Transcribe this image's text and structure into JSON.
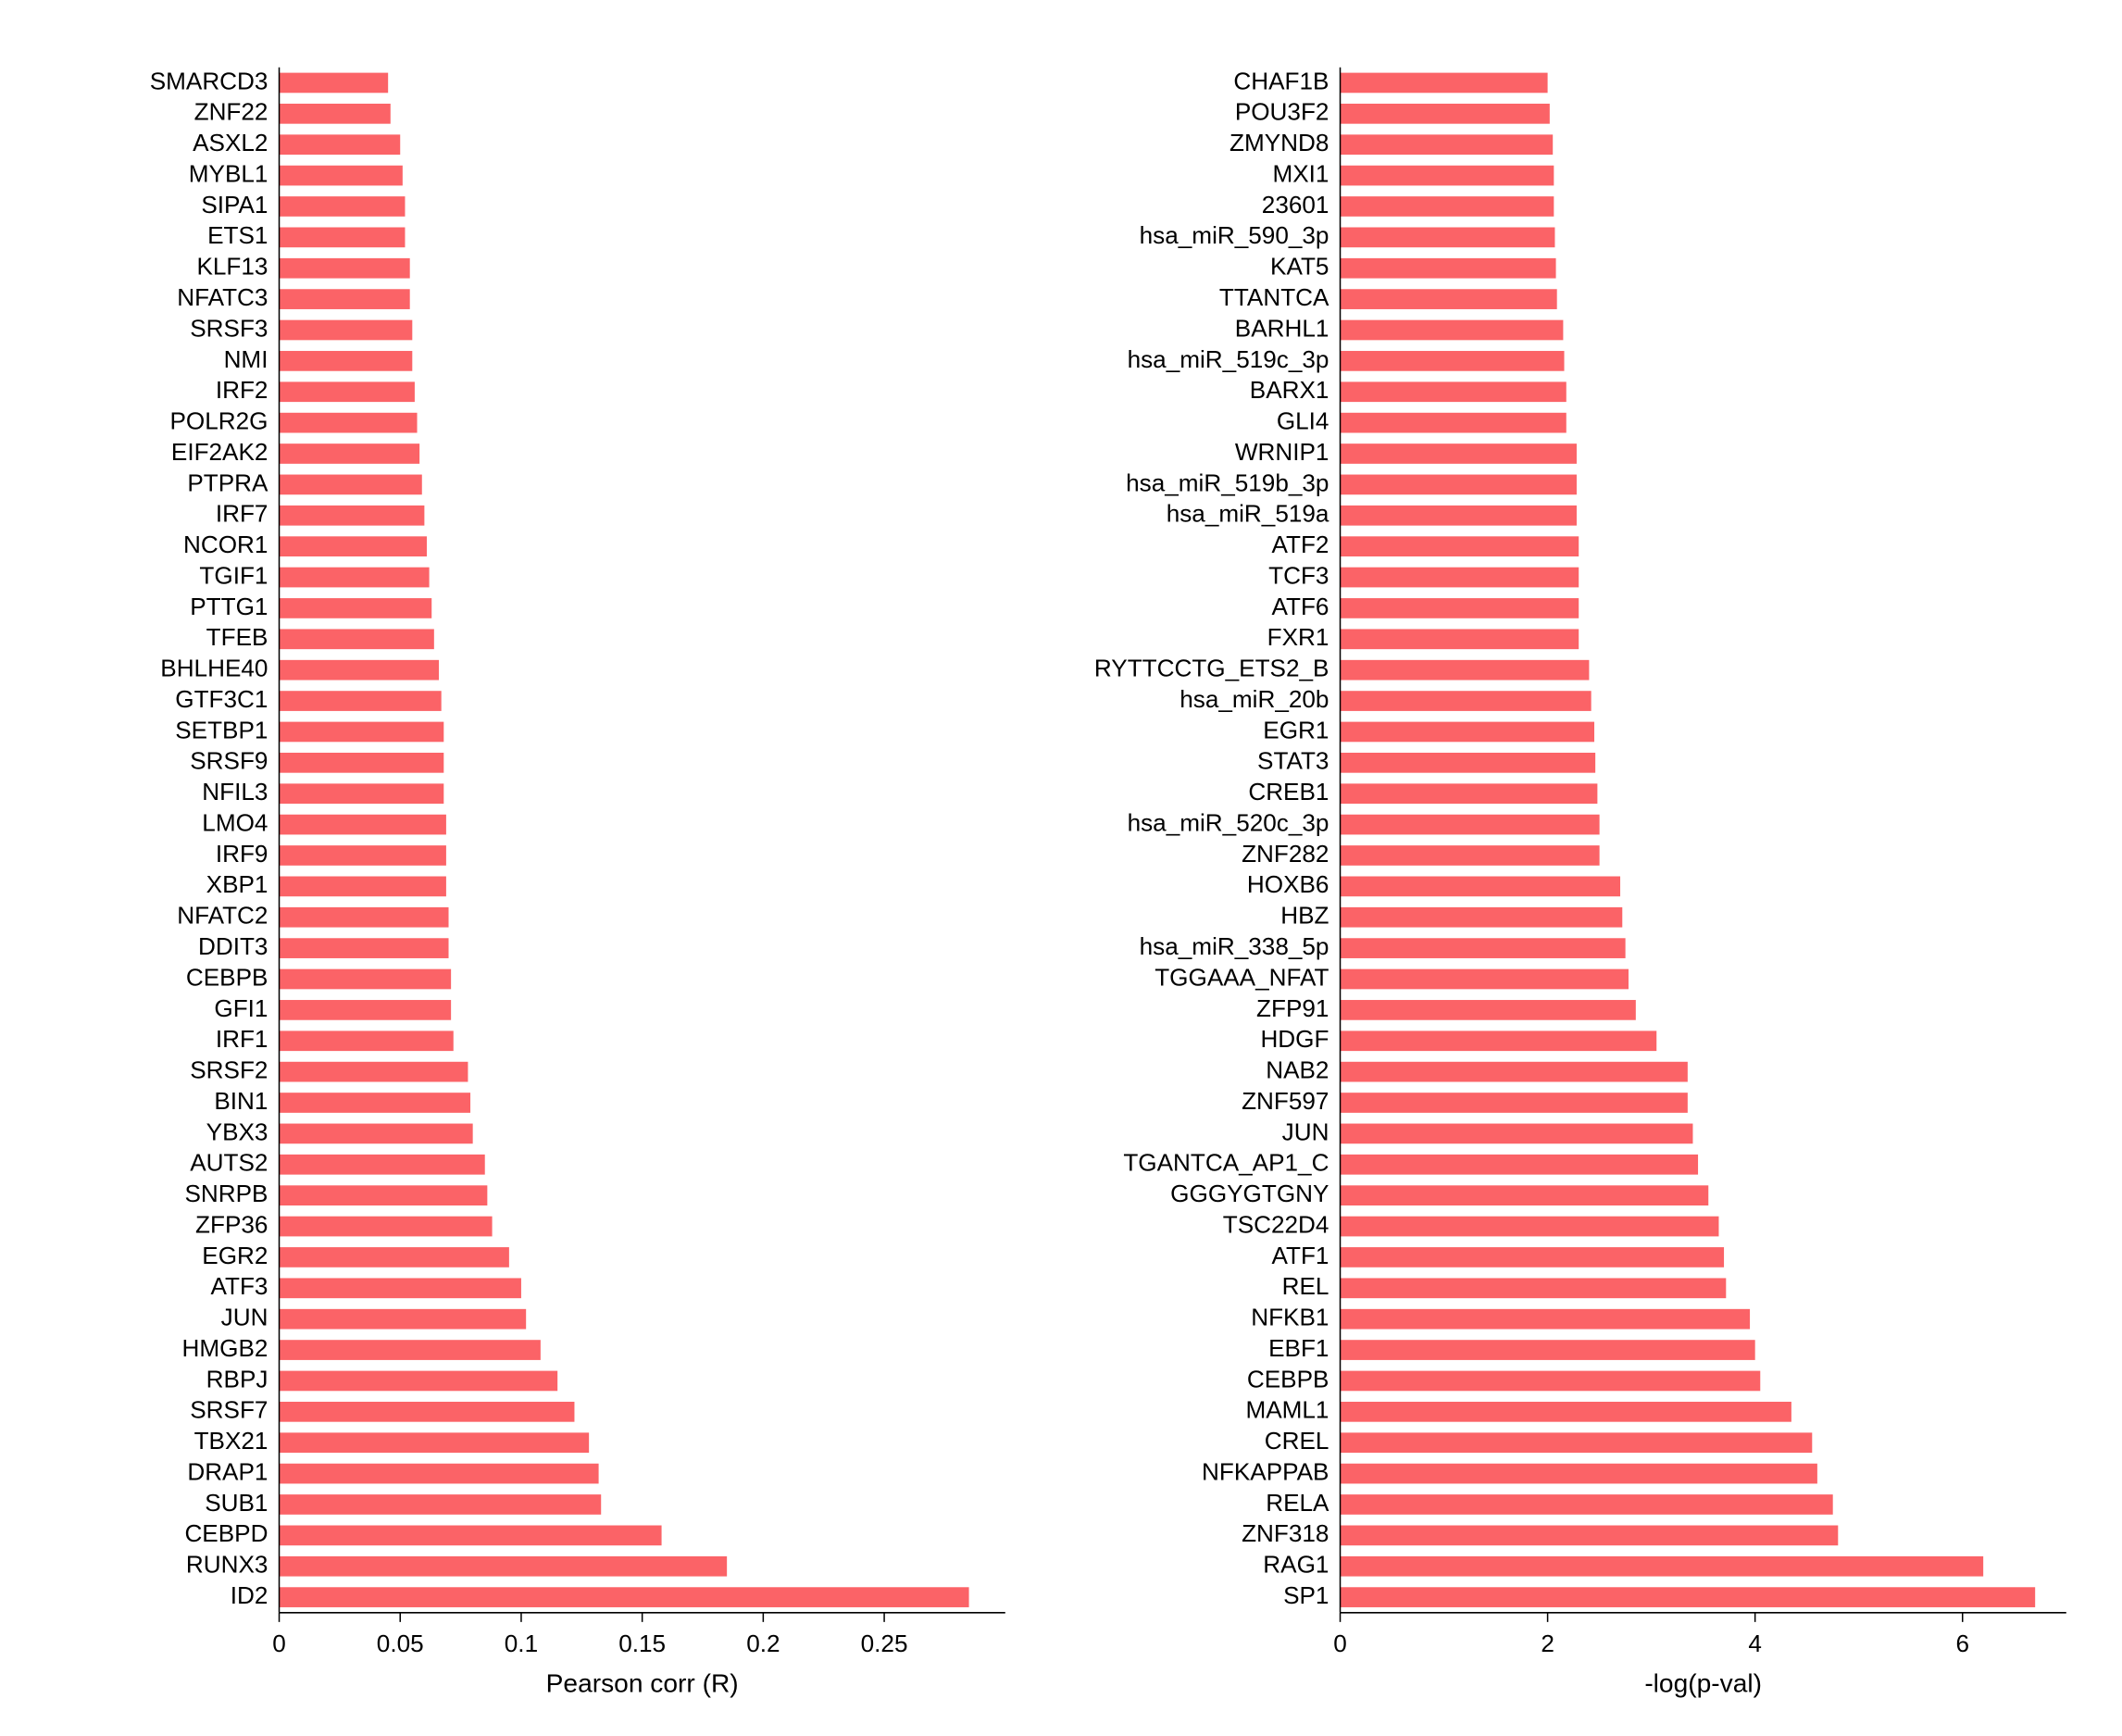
{
  "bar_color": "#fb6367",
  "background_color": "#ffffff",
  "axis_color": "#000000",
  "label_fontsize": 26,
  "axis_title_fontsize": 28,
  "bar_height_ratio": 0.65,
  "left": {
    "type": "bar",
    "xlabel": "Pearson corr (R)",
    "xlim": [
      0,
      0.3
    ],
    "xticks": [
      0,
      0.05,
      0.1,
      0.15,
      0.2,
      0.25
    ],
    "xtick_labels": [
      "0",
      "0.05",
      "0.1",
      "0.15",
      "0.2",
      "0.25"
    ],
    "items": [
      {
        "label": "SMARCD3",
        "value": 0.045
      },
      {
        "label": "ZNF22",
        "value": 0.046
      },
      {
        "label": "ASXL2",
        "value": 0.05
      },
      {
        "label": "MYBL1",
        "value": 0.051
      },
      {
        "label": "SIPA1",
        "value": 0.052
      },
      {
        "label": "ETS1",
        "value": 0.052
      },
      {
        "label": "KLF13",
        "value": 0.054
      },
      {
        "label": "NFATC3",
        "value": 0.054
      },
      {
        "label": "SRSF3",
        "value": 0.055
      },
      {
        "label": "NMI",
        "value": 0.055
      },
      {
        "label": "IRF2",
        "value": 0.056
      },
      {
        "label": "POLR2G",
        "value": 0.057
      },
      {
        "label": "EIF2AK2",
        "value": 0.058
      },
      {
        "label": "PTPRA",
        "value": 0.059
      },
      {
        "label": "IRF7",
        "value": 0.06
      },
      {
        "label": "NCOR1",
        "value": 0.061
      },
      {
        "label": "TGIF1",
        "value": 0.062
      },
      {
        "label": "PTTG1",
        "value": 0.063
      },
      {
        "label": "TFEB",
        "value": 0.064
      },
      {
        "label": "BHLHE40",
        "value": 0.066
      },
      {
        "label": "GTF3C1",
        "value": 0.067
      },
      {
        "label": "SETBP1",
        "value": 0.068
      },
      {
        "label": "SRSF9",
        "value": 0.068
      },
      {
        "label": "NFIL3",
        "value": 0.068
      },
      {
        "label": "LMO4",
        "value": 0.069
      },
      {
        "label": "IRF9",
        "value": 0.069
      },
      {
        "label": "XBP1",
        "value": 0.069
      },
      {
        "label": "NFATC2",
        "value": 0.07
      },
      {
        "label": "DDIT3",
        "value": 0.07
      },
      {
        "label": "CEBPB",
        "value": 0.071
      },
      {
        "label": "GFI1",
        "value": 0.071
      },
      {
        "label": "IRF1",
        "value": 0.072
      },
      {
        "label": "SRSF2",
        "value": 0.078
      },
      {
        "label": "BIN1",
        "value": 0.079
      },
      {
        "label": "YBX3",
        "value": 0.08
      },
      {
        "label": "AUTS2",
        "value": 0.085
      },
      {
        "label": "SNRPB",
        "value": 0.086
      },
      {
        "label": "ZFP36",
        "value": 0.088
      },
      {
        "label": "EGR2",
        "value": 0.095
      },
      {
        "label": "ATF3",
        "value": 0.1
      },
      {
        "label": "JUN",
        "value": 0.102
      },
      {
        "label": "HMGB2",
        "value": 0.108
      },
      {
        "label": "RBPJ",
        "value": 0.115
      },
      {
        "label": "SRSF7",
        "value": 0.122
      },
      {
        "label": "TBX21",
        "value": 0.128
      },
      {
        "label": "DRAP1",
        "value": 0.132
      },
      {
        "label": "SUB1",
        "value": 0.133
      },
      {
        "label": "CEBPD",
        "value": 0.158
      },
      {
        "label": "RUNX3",
        "value": 0.185
      },
      {
        "label": "ID2",
        "value": 0.285
      }
    ]
  },
  "right": {
    "type": "bar",
    "xlabel": "-log(p-val)",
    "xlim": [
      0,
      7.0
    ],
    "xticks": [
      0,
      2,
      4,
      6
    ],
    "xtick_labels": [
      "0",
      "2",
      "4",
      "6"
    ],
    "items": [
      {
        "label": "CHAF1B",
        "value": 2.0
      },
      {
        "label": "POU3F2",
        "value": 2.02
      },
      {
        "label": "ZMYND8",
        "value": 2.05
      },
      {
        "label": "MXI1",
        "value": 2.06
      },
      {
        "label": "23601",
        "value": 2.06
      },
      {
        "label": "hsa_miR_590_3p",
        "value": 2.07
      },
      {
        "label": "KAT5",
        "value": 2.08
      },
      {
        "label": "TTANTCA",
        "value": 2.09
      },
      {
        "label": "BARHL1",
        "value": 2.15
      },
      {
        "label": "hsa_miR_519c_3p",
        "value": 2.16
      },
      {
        "label": "BARX1",
        "value": 2.18
      },
      {
        "label": "GLI4",
        "value": 2.18
      },
      {
        "label": "WRNIP1",
        "value": 2.28
      },
      {
        "label": "hsa_miR_519b_3p",
        "value": 2.28
      },
      {
        "label": "hsa_miR_519a",
        "value": 2.28
      },
      {
        "label": "ATF2",
        "value": 2.3
      },
      {
        "label": "TCF3",
        "value": 2.3
      },
      {
        "label": "ATF6",
        "value": 2.3
      },
      {
        "label": "FXR1",
        "value": 2.3
      },
      {
        "label": "RYTTCCTG_ETS2_B",
        "value": 2.4
      },
      {
        "label": "hsa_miR_20b",
        "value": 2.42
      },
      {
        "label": "EGR1",
        "value": 2.45
      },
      {
        "label": "STAT3",
        "value": 2.46
      },
      {
        "label": "CREB1",
        "value": 2.48
      },
      {
        "label": "hsa_miR_520c_3p",
        "value": 2.5
      },
      {
        "label": "ZNF282",
        "value": 2.5
      },
      {
        "label": "HOXB6",
        "value": 2.7
      },
      {
        "label": "HBZ",
        "value": 2.72
      },
      {
        "label": "hsa_miR_338_5p",
        "value": 2.75
      },
      {
        "label": "TGGAAA_NFAT",
        "value": 2.78
      },
      {
        "label": "ZFP91",
        "value": 2.85
      },
      {
        "label": "HDGF",
        "value": 3.05
      },
      {
        "label": "NAB2",
        "value": 3.35
      },
      {
        "label": "ZNF597",
        "value": 3.35
      },
      {
        "label": "JUN",
        "value": 3.4
      },
      {
        "label": "TGANTCA_AP1_C",
        "value": 3.45
      },
      {
        "label": "GGGYGTGNY",
        "value": 3.55
      },
      {
        "label": "TSC22D4",
        "value": 3.65
      },
      {
        "label": "ATF1",
        "value": 3.7
      },
      {
        "label": "REL",
        "value": 3.72
      },
      {
        "label": "NFKB1",
        "value": 3.95
      },
      {
        "label": "EBF1",
        "value": 4.0
      },
      {
        "label": "CEBPB",
        "value": 4.05
      },
      {
        "label": "MAML1",
        "value": 4.35
      },
      {
        "label": "CREL",
        "value": 4.55
      },
      {
        "label": "NFKAPPAB",
        "value": 4.6
      },
      {
        "label": "RELA",
        "value": 4.75
      },
      {
        "label": "ZNF318",
        "value": 4.8
      },
      {
        "label": "RAG1",
        "value": 6.2
      },
      {
        "label": "SP1",
        "value": 6.7
      }
    ]
  }
}
